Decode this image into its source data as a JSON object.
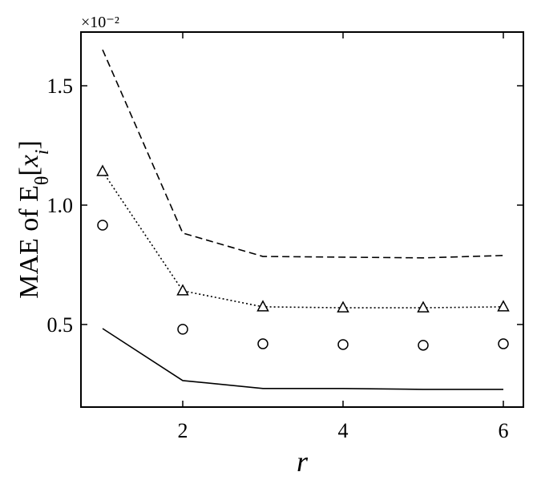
{
  "chart_data": {
    "type": "line",
    "axis_multiplier": "×10⁻²",
    "xlabel": "r",
    "ylabel": [
      {
        "text": "MAE of E"
      },
      {
        "text": "θ",
        "sub": true
      },
      {
        "text": "["
      },
      {
        "text": "x",
        "italic": true
      },
      {
        "text": "i",
        "sub": true,
        "italic": true
      },
      {
        "text": "]"
      }
    ],
    "x": [
      1,
      2,
      3,
      4,
      5,
      6
    ],
    "series": [
      {
        "color": "#000000",
        "line_style": "dashed",
        "marker": "none",
        "values": [
          1.651,
          0.883,
          0.785,
          0.782,
          0.779,
          0.789
        ]
      },
      {
        "color": "#000000",
        "line_style": "dotted",
        "marker": "triangle",
        "values": [
          1.141,
          0.641,
          0.574,
          0.57,
          0.57,
          0.574
        ]
      },
      {
        "color": "#000000",
        "line_style": "none",
        "marker": "circle",
        "values": [
          0.916,
          0.48,
          0.419,
          0.416,
          0.413,
          0.419
        ]
      },
      {
        "color": "#000000",
        "line_style": "solid",
        "marker": "none",
        "values": [
          0.483,
          0.265,
          0.232,
          0.232,
          0.228,
          0.228
        ]
      }
    ],
    "xlim": [
      0.73,
      6.25
    ],
    "xticks": [
      2,
      4,
      6
    ],
    "ylim": [
      0.154,
      1.725
    ],
    "yticks": [
      0.5,
      {
        "value": 1,
        "label": "1.0"
      },
      1.5
    ],
    "grid": false
  }
}
